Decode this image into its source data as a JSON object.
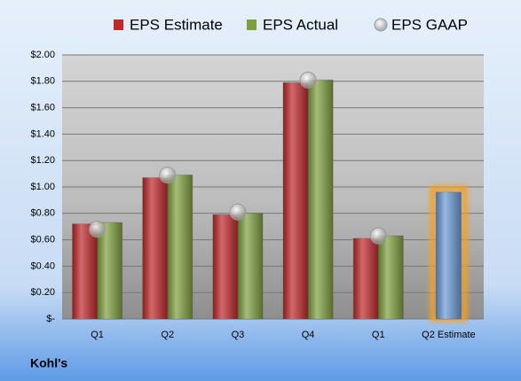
{
  "chart_data": {
    "type": "bar",
    "title": "Kohl's",
    "categories": [
      "Q1",
      "Q2",
      "Q3",
      "Q4",
      "Q1",
      "Q2 Estimate"
    ],
    "series": [
      {
        "name": "EPS Estimate",
        "color": "#c0282a",
        "values": [
          0.72,
          1.07,
          0.79,
          1.79,
          0.61,
          0.96
        ]
      },
      {
        "name": "EPS Actual",
        "color": "#7f9f3f",
        "values": [
          0.73,
          1.09,
          0.8,
          1.81,
          0.63,
          null
        ]
      },
      {
        "name": "EPS GAAP",
        "color": "#a0a0a0",
        "values": [
          0.68,
          1.09,
          0.81,
          1.81,
          0.63,
          null
        ]
      }
    ],
    "forecast_color": "#6a9ad6",
    "ylim": [
      0,
      2
    ],
    "yticks": [
      {
        "value": 0,
        "label": "$-"
      },
      {
        "value": 0.2,
        "label": "$0.20"
      },
      {
        "value": 0.4,
        "label": "$0.40"
      },
      {
        "value": 0.6,
        "label": "$0.60"
      },
      {
        "value": 0.8,
        "label": "$0.80"
      },
      {
        "value": 1,
        "label": "$1.00"
      },
      {
        "value": 1.2,
        "label": "$1.20"
      },
      {
        "value": 1.4,
        "label": "$1.40"
      },
      {
        "value": 1.6,
        "label": "$1.60"
      },
      {
        "value": 1.8,
        "label": "$1.80"
      },
      {
        "value": 2,
        "label": "$2.00"
      }
    ],
    "grid": true
  }
}
